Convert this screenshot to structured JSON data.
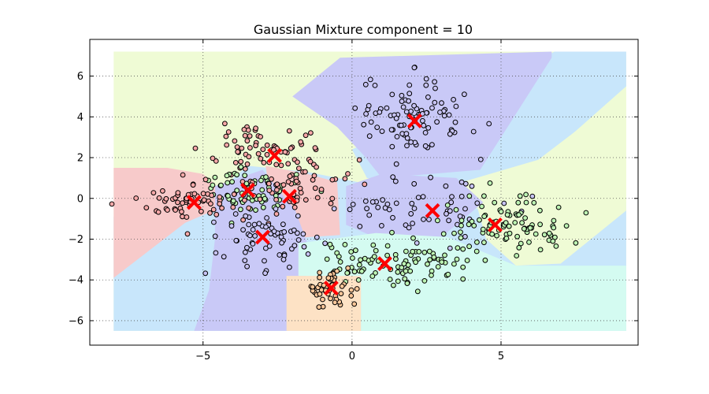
{
  "chart_data": {
    "type": "scatter",
    "title": "Gaussian Mixture component = 10",
    "xlabel": "",
    "ylabel": "",
    "xlim": [
      -8.8,
      9.6
    ],
    "ylim": [
      -7.2,
      7.8
    ],
    "xticks": [
      -5,
      0,
      5
    ],
    "yticks": [
      6,
      4,
      2,
      0,
      -2,
      -4,
      -6
    ],
    "xtick_labels": [
      "−5",
      "0",
      "5"
    ],
    "ytick_labels": [
      "6",
      "4",
      "2",
      "0",
      "−2",
      "−4",
      "−6"
    ],
    "grid": true,
    "legend": "none",
    "colors": {
      "region_pink": "#f7caca",
      "region_yellowgreen": "#effbd5",
      "region_purple": "#c9c9f7",
      "region_blue": "#c8e6fb",
      "region_cyan": "#d4fbf1",
      "region_orange": "#fde2c5",
      "point_pink": "#f7a8a8",
      "point_green": "#bdf3b3",
      "point_purple": "#c7c3f3",
      "point_blue": "#c3dcf7",
      "point_orange": "#fbc79a",
      "center": "#ff0000"
    },
    "centers": [
      {
        "x": 2.1,
        "y": 3.8
      },
      {
        "x": -2.6,
        "y": 2.1
      },
      {
        "x": -3.5,
        "y": 0.4
      },
      {
        "x": -5.3,
        "y": -0.2
      },
      {
        "x": -2.1,
        "y": 0.1
      },
      {
        "x": 2.7,
        "y": -0.6
      },
      {
        "x": 4.8,
        "y": -1.3
      },
      {
        "x": -3.0,
        "y": -1.9
      },
      {
        "x": 1.1,
        "y": -3.2
      },
      {
        "x": -0.7,
        "y": -4.4
      }
    ],
    "clusters": [
      {
        "color": "point_purple",
        "cx": 2.1,
        "cy": 4.0,
        "sx": 0.9,
        "sy": 0.9,
        "n": 95
      },
      {
        "color": "point_pink",
        "cx": -2.6,
        "cy": 2.3,
        "sx": 1.0,
        "sy": 0.7,
        "n": 75
      },
      {
        "color": "point_green",
        "cx": -3.4,
        "cy": 0.5,
        "sx": 0.8,
        "sy": 0.6,
        "n": 70
      },
      {
        "color": "point_pink",
        "cx": -5.3,
        "cy": -0.2,
        "sx": 0.9,
        "sy": 0.5,
        "n": 65
      },
      {
        "color": "point_pink",
        "cx": -2.0,
        "cy": 0.2,
        "sx": 0.7,
        "sy": 0.5,
        "n": 45
      },
      {
        "color": "point_purple",
        "cx": 2.6,
        "cy": -0.4,
        "sx": 1.4,
        "sy": 0.8,
        "n": 55
      },
      {
        "color": "point_green",
        "cx": 5.2,
        "cy": -1.2,
        "sx": 1.2,
        "sy": 0.7,
        "n": 90
      },
      {
        "color": "point_purple",
        "cx": -3.0,
        "cy": -2.0,
        "sx": 0.8,
        "sy": 0.8,
        "n": 65
      },
      {
        "color": "point_green",
        "cx": 1.5,
        "cy": -3.2,
        "sx": 1.4,
        "sy": 0.6,
        "n": 95
      },
      {
        "color": "point_orange",
        "cx": -0.7,
        "cy": -4.4,
        "sx": 0.4,
        "sy": 0.4,
        "n": 50
      }
    ],
    "regions": [
      {
        "color": "region_yellowgreen",
        "points": [
          [
            -8,
            7.2
          ],
          [
            9.2,
            7.2
          ],
          [
            9.2,
            -6.5
          ],
          [
            -8,
            -6.5
          ]
        ]
      },
      {
        "color": "region_blue",
        "points": [
          [
            -8,
            -0.9
          ],
          [
            -6.0,
            -0.9
          ],
          [
            -4.6,
            -0.5
          ],
          [
            -4.3,
            0.6
          ],
          [
            -3.5,
            1.6
          ],
          [
            -1.5,
            1.3
          ],
          [
            0.2,
            0.8
          ],
          [
            4,
            -0.5
          ],
          [
            9.2,
            -0.2
          ],
          [
            9.2,
            -6.5
          ],
          [
            -8,
            -6.5
          ]
        ]
      },
      {
        "color": "region_blue",
        "points": [
          [
            0,
            2.4
          ],
          [
            6.8,
            7.2
          ],
          [
            9.2,
            7.2
          ],
          [
            9.2,
            5.5
          ],
          [
            6.5,
            2.0
          ],
          [
            3.0,
            0.5
          ],
          [
            0.5,
            1.0
          ]
        ]
      },
      {
        "color": "region_yellowgreen",
        "points": [
          [
            4.2,
            -0.4
          ],
          [
            9.2,
            5.2
          ],
          [
            9.2,
            -0.6
          ],
          [
            7.0,
            -3.2
          ],
          [
            5.5,
            -3.3
          ],
          [
            4.5,
            -2.0
          ]
        ]
      },
      {
        "color": "region_pink",
        "points": [
          [
            -8,
            1.5
          ],
          [
            -6.2,
            1.5
          ],
          [
            -5.0,
            1.2
          ],
          [
            -4.6,
            0.7
          ],
          [
            -4.5,
            -0.5
          ],
          [
            -5.6,
            -1.2
          ],
          [
            -8,
            -3.9
          ]
        ]
      },
      {
        "color": "region_pink",
        "points": [
          [
            -2.9,
            1.6
          ],
          [
            -1.5,
            1.2
          ],
          [
            -0.5,
            0.8
          ],
          [
            -0.4,
            -1.8
          ],
          [
            -2.5,
            -2.0
          ],
          [
            -2.7,
            -0.5
          ]
        ]
      },
      {
        "color": "region_purple",
        "points": [
          [
            -0.4,
            6.9
          ],
          [
            6.7,
            7.2
          ],
          [
            6.7,
            6.9
          ],
          [
            5.0,
            3.0
          ],
          [
            4.3,
            1.4
          ],
          [
            1.0,
            1.0
          ],
          [
            0.4,
            2.1
          ],
          [
            -0.5,
            3.5
          ],
          [
            -2.0,
            5.0
          ]
        ]
      },
      {
        "color": "region_purple",
        "points": [
          [
            -4.6,
            0.6
          ],
          [
            -3.0,
            1.4
          ],
          [
            -1.9,
            -0.6
          ],
          [
            -1.3,
            -3.0
          ],
          [
            -1.7,
            -4.3
          ],
          [
            -2.1,
            -6.5
          ],
          [
            -5.3,
            -6.5
          ],
          [
            -4.8,
            -4.5
          ],
          [
            -4.6,
            -2.0
          ]
        ]
      },
      {
        "color": "region_purple",
        "points": [
          [
            -0.2,
            0.6
          ],
          [
            1.0,
            1.2
          ],
          [
            3.5,
            1.0
          ],
          [
            4.4,
            -0.2
          ],
          [
            3.0,
            -1.9
          ],
          [
            0.6,
            -1.8
          ],
          [
            -0.2,
            -1.3
          ]
        ]
      },
      {
        "color": "region_cyan",
        "points": [
          [
            -1.8,
            -2.2
          ],
          [
            0.8,
            -1.7
          ],
          [
            3.2,
            -1.9
          ],
          [
            5.5,
            -3.3
          ],
          [
            9.2,
            -3.3
          ],
          [
            9.2,
            -6.5
          ],
          [
            0.3,
            -6.5
          ],
          [
            0.3,
            -3.8
          ],
          [
            -1.8,
            -3.8
          ]
        ]
      },
      {
        "color": "region_orange",
        "points": [
          [
            -2.2,
            -3.8
          ],
          [
            0.3,
            -3.8
          ],
          [
            0.3,
            -6.5
          ],
          [
            -2.2,
            -6.5
          ]
        ]
      }
    ]
  }
}
